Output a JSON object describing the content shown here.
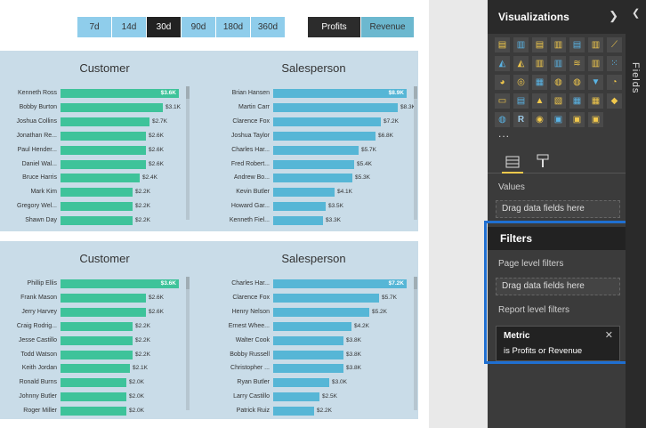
{
  "slicers": {
    "days": [
      {
        "label": "7d",
        "selected": false
      },
      {
        "label": "14d",
        "selected": false
      },
      {
        "label": "30d",
        "selected": true
      },
      {
        "label": "90d",
        "selected": false
      },
      {
        "label": "180d",
        "selected": false
      },
      {
        "label": "360d",
        "selected": false
      }
    ],
    "metric": [
      {
        "label": "Profits",
        "selected": false
      },
      {
        "label": "Revenue",
        "selected": true
      }
    ]
  },
  "colors": {
    "green": "#3ec39a",
    "blue": "#56b6d6"
  },
  "charts": [
    {
      "panel": 0,
      "side": 0,
      "title": "Customer",
      "color": "green",
      "max": 3.6,
      "rows": [
        [
          "Kenneth Ross",
          3.6,
          "$3.6K"
        ],
        [
          "Bobby Burton",
          3.1,
          "$3.1K"
        ],
        [
          "Joshua Collins",
          2.7,
          "$2.7K"
        ],
        [
          "Jonathan Re...",
          2.6,
          "$2.6K"
        ],
        [
          "Paul Hender...",
          2.6,
          "$2.6K"
        ],
        [
          "Daniel Wal...",
          2.6,
          "$2.6K"
        ],
        [
          "Bruce Harris",
          2.4,
          "$2.4K"
        ],
        [
          "Mark Kim",
          2.2,
          "$2.2K"
        ],
        [
          "Gregory Wel...",
          2.2,
          "$2.2K"
        ],
        [
          "Shawn Day",
          2.2,
          "$2.2K"
        ]
      ]
    },
    {
      "panel": 0,
      "side": 1,
      "title": "Salesperson",
      "color": "blue",
      "max": 8.9,
      "rows": [
        [
          "Brian Hansen",
          8.9,
          "$8.9K"
        ],
        [
          "Martin Carr",
          8.3,
          "$8.3K"
        ],
        [
          "Clarence Fox",
          7.2,
          "$7.2K"
        ],
        [
          "Joshua Taylor",
          6.8,
          "$6.8K"
        ],
        [
          "Charles Har...",
          5.7,
          "$5.7K"
        ],
        [
          "Fred Robert...",
          5.4,
          "$5.4K"
        ],
        [
          "Andrew Bo...",
          5.3,
          "$5.3K"
        ],
        [
          "Kevin Butler",
          4.1,
          "$4.1K"
        ],
        [
          "Howard Gar...",
          3.5,
          "$3.5K"
        ],
        [
          "Kenneth Fiel...",
          3.3,
          "$3.3K"
        ]
      ]
    },
    {
      "panel": 1,
      "side": 0,
      "title": "Customer",
      "color": "green",
      "max": 3.6,
      "rows": [
        [
          "Phillip Ellis",
          3.6,
          "$3.6K"
        ],
        [
          "Frank Mason",
          2.6,
          "$2.6K"
        ],
        [
          "Jerry Harvey",
          2.6,
          "$2.6K"
        ],
        [
          "Craig Rodrig...",
          2.2,
          "$2.2K"
        ],
        [
          "Jesse Castillo",
          2.2,
          "$2.2K"
        ],
        [
          "Todd Watson",
          2.2,
          "$2.2K"
        ],
        [
          "Keith Jordan",
          2.1,
          "$2.1K"
        ],
        [
          "Ronald Burns",
          2.0,
          "$2.0K"
        ],
        [
          "Johnny Butler",
          2.0,
          "$2.0K"
        ],
        [
          "Roger Miller",
          2.0,
          "$2.0K"
        ]
      ]
    },
    {
      "panel": 1,
      "side": 1,
      "title": "Salesperson",
      "color": "blue",
      "max": 7.2,
      "rows": [
        [
          "Charles Har...",
          7.2,
          "$7.2K"
        ],
        [
          "Clarence Fox",
          5.7,
          "$5.7K"
        ],
        [
          "Henry Nelson",
          5.2,
          "$5.2K"
        ],
        [
          "Ernest Whee...",
          4.2,
          "$4.2K"
        ],
        [
          "Walter Cook",
          3.8,
          "$3.8K"
        ],
        [
          "Bobby Russell",
          3.8,
          "$3.8K"
        ],
        [
          "Christopher ...",
          3.8,
          "$3.8K"
        ],
        [
          "Ryan Butler",
          3.0,
          "$3.0K"
        ],
        [
          "Larry Castillo",
          2.5,
          "$2.5K"
        ],
        [
          "Patrick Ruiz",
          2.2,
          "$2.2K"
        ]
      ]
    }
  ],
  "pane": {
    "title": "Visualizations",
    "values_label": "Values",
    "drag_label": "Drag data fields here",
    "filters": {
      "title": "Filters",
      "page_level": "Page level filters",
      "drag_label": "Drag data fields here",
      "report_level": "Report level filters",
      "card_title": "Metric",
      "card_desc": "is Profits or Revenue"
    },
    "fields_tab": "Fields",
    "more": "..."
  },
  "icons": [
    "stacked-bar-icon",
    "stacked-column-icon",
    "clustered-bar-icon",
    "clustered-column-icon",
    "100-bar-icon",
    "100-column-icon",
    "line-chart-icon",
    "area-chart-icon",
    "stacked-area-icon",
    "line-column-icon",
    "line-clustered-icon",
    "ribbon-chart-icon",
    "waterfall-icon",
    "scatter-icon",
    "pie-chart-icon",
    "donut-icon",
    "treemap-icon",
    "map-icon",
    "filled-map-icon",
    "funnel-icon",
    "gauge-icon",
    "card-icon",
    "multirow-card-icon",
    "kpi-icon",
    "slicer-icon",
    "table-icon",
    "matrix-icon",
    "shape-map-icon",
    "arcgis-icon",
    "r-visual-icon",
    "globe-icon",
    "custom-visual-icon",
    "custom-visual2-icon",
    "custom-visual3-icon"
  ]
}
